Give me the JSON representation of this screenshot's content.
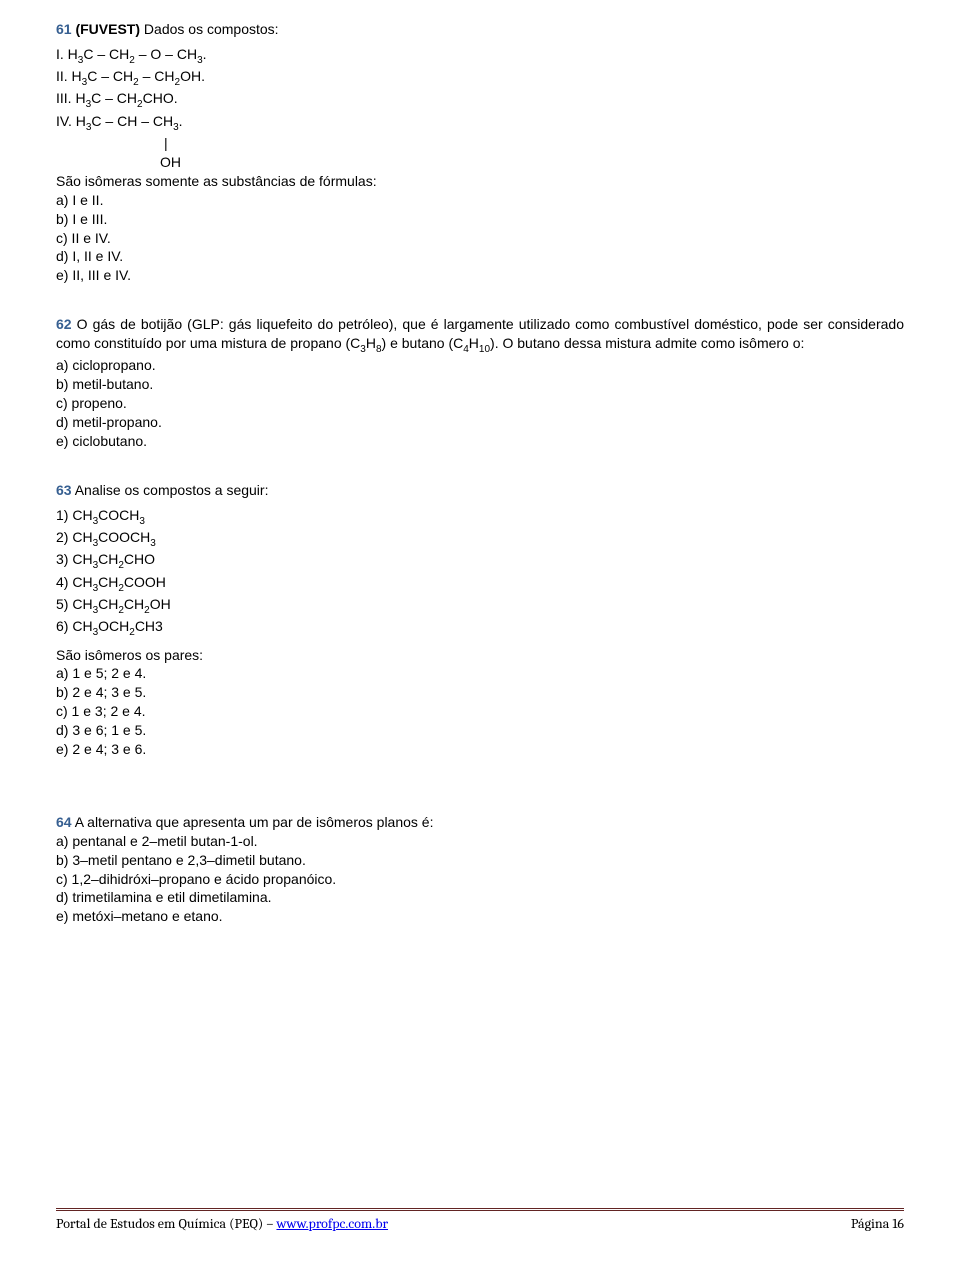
{
  "colors": {
    "question_number": "#365f91",
    "body_text": "#000000",
    "footer_rule": "#622423",
    "link": "#0000ee",
    "background": "#ffffff"
  },
  "typography": {
    "body_font": "Trebuchet MS / Verdana",
    "body_size_pt": 11,
    "footer_font": "Cambria",
    "footer_size_pt": 11,
    "subscript_size_pt": 8
  },
  "q61": {
    "num": "61",
    "source": "(FUVEST)",
    "intro": " Dados os compostos:",
    "i_label": "I. H",
    "i_mid": "C – CH",
    "i_mid2": " – O – CH",
    "i_end": ".",
    "ii_label": "II. H",
    "ii_mid": "C – CH",
    "ii_mid2": " – CH",
    "ii_end": "OH.",
    "iii_label": "III. H",
    "iii_mid": "C – CH",
    "iii_end": "CHO.",
    "iv_label": "IV. H",
    "iv_mid": "C – CH – CH",
    "iv_end": ".",
    "pipe": "|",
    "oh": "OH",
    "stem": "São isômeras somente as substâncias de fórmulas:",
    "a": "a) I e II.",
    "b": "b) I e III.",
    "c": "c) II e IV.",
    "d": "d) I, II e IV.",
    "e": "e) II, III e IV."
  },
  "q62": {
    "num": "62",
    "stem1": " O gás de botijão (GLP: gás liquefeito do petróleo), que é largamente utilizado como combustível doméstico, pode ser considerado como constituído por uma mistura de propano (C",
    "stem2": ") e butano (C",
    "stem3": "). O butano dessa mistura admite como isômero o:",
    "c3": "3",
    "h8": "H",
    "h8n": "8",
    "c4": "4",
    "h10": "H",
    "h10n": "10",
    "a": "a) ciclopropano.",
    "b": "b) metil-butano.",
    "c": "c) propeno.",
    "d": "d) metil-propano.",
    "e": "e) ciclobutano."
  },
  "q63": {
    "num": "63",
    "intro": " Analise os compostos a seguir:",
    "l1a": "1) CH",
    "l1b": "COCH",
    "l2a": "2) CH",
    "l2b": "COOCH",
    "l3a": "3) CH",
    "l3b": "CH",
    "l3c": "CHO",
    "l4a": "4) CH",
    "l4b": "CH",
    "l4c": "COOH",
    "l5a": "5) CH",
    "l5b": "CH",
    "l5c": "CH",
    "l5d": "OH",
    "l6a": "6) CH",
    "l6b": "OCH",
    "l6c": "CH3",
    "stem": "São isômeros os pares:",
    "a": "a) 1 e 5; 2 e 4.",
    "b": "b) 2 e 4; 3 e 5.",
    "c": "c) 1 e 3; 2 e 4.",
    "d": "d) 3 e 6; 1 e 5.",
    "e": "e) 2 e 4; 3 e 6."
  },
  "q64": {
    "num": "64",
    "intro": " A alternativa que apresenta um par de isômeros planos é:",
    "a": "a) pentanal e 2–metil butan-1-ol.",
    "b": "b) 3–metil pentano e 2,3–dimetil butano.",
    "c": "c) 1,2–dihidróxi–propano e ácido propanóico.",
    "d": "d) trimetilamina e etil dimetilamina.",
    "e": "e) metóxi–metano e etano."
  },
  "footer": {
    "left_a": "Portal de Estudos em Química (PEQ) – ",
    "link": "www.profpc.com.br",
    "right": "Página 16"
  }
}
